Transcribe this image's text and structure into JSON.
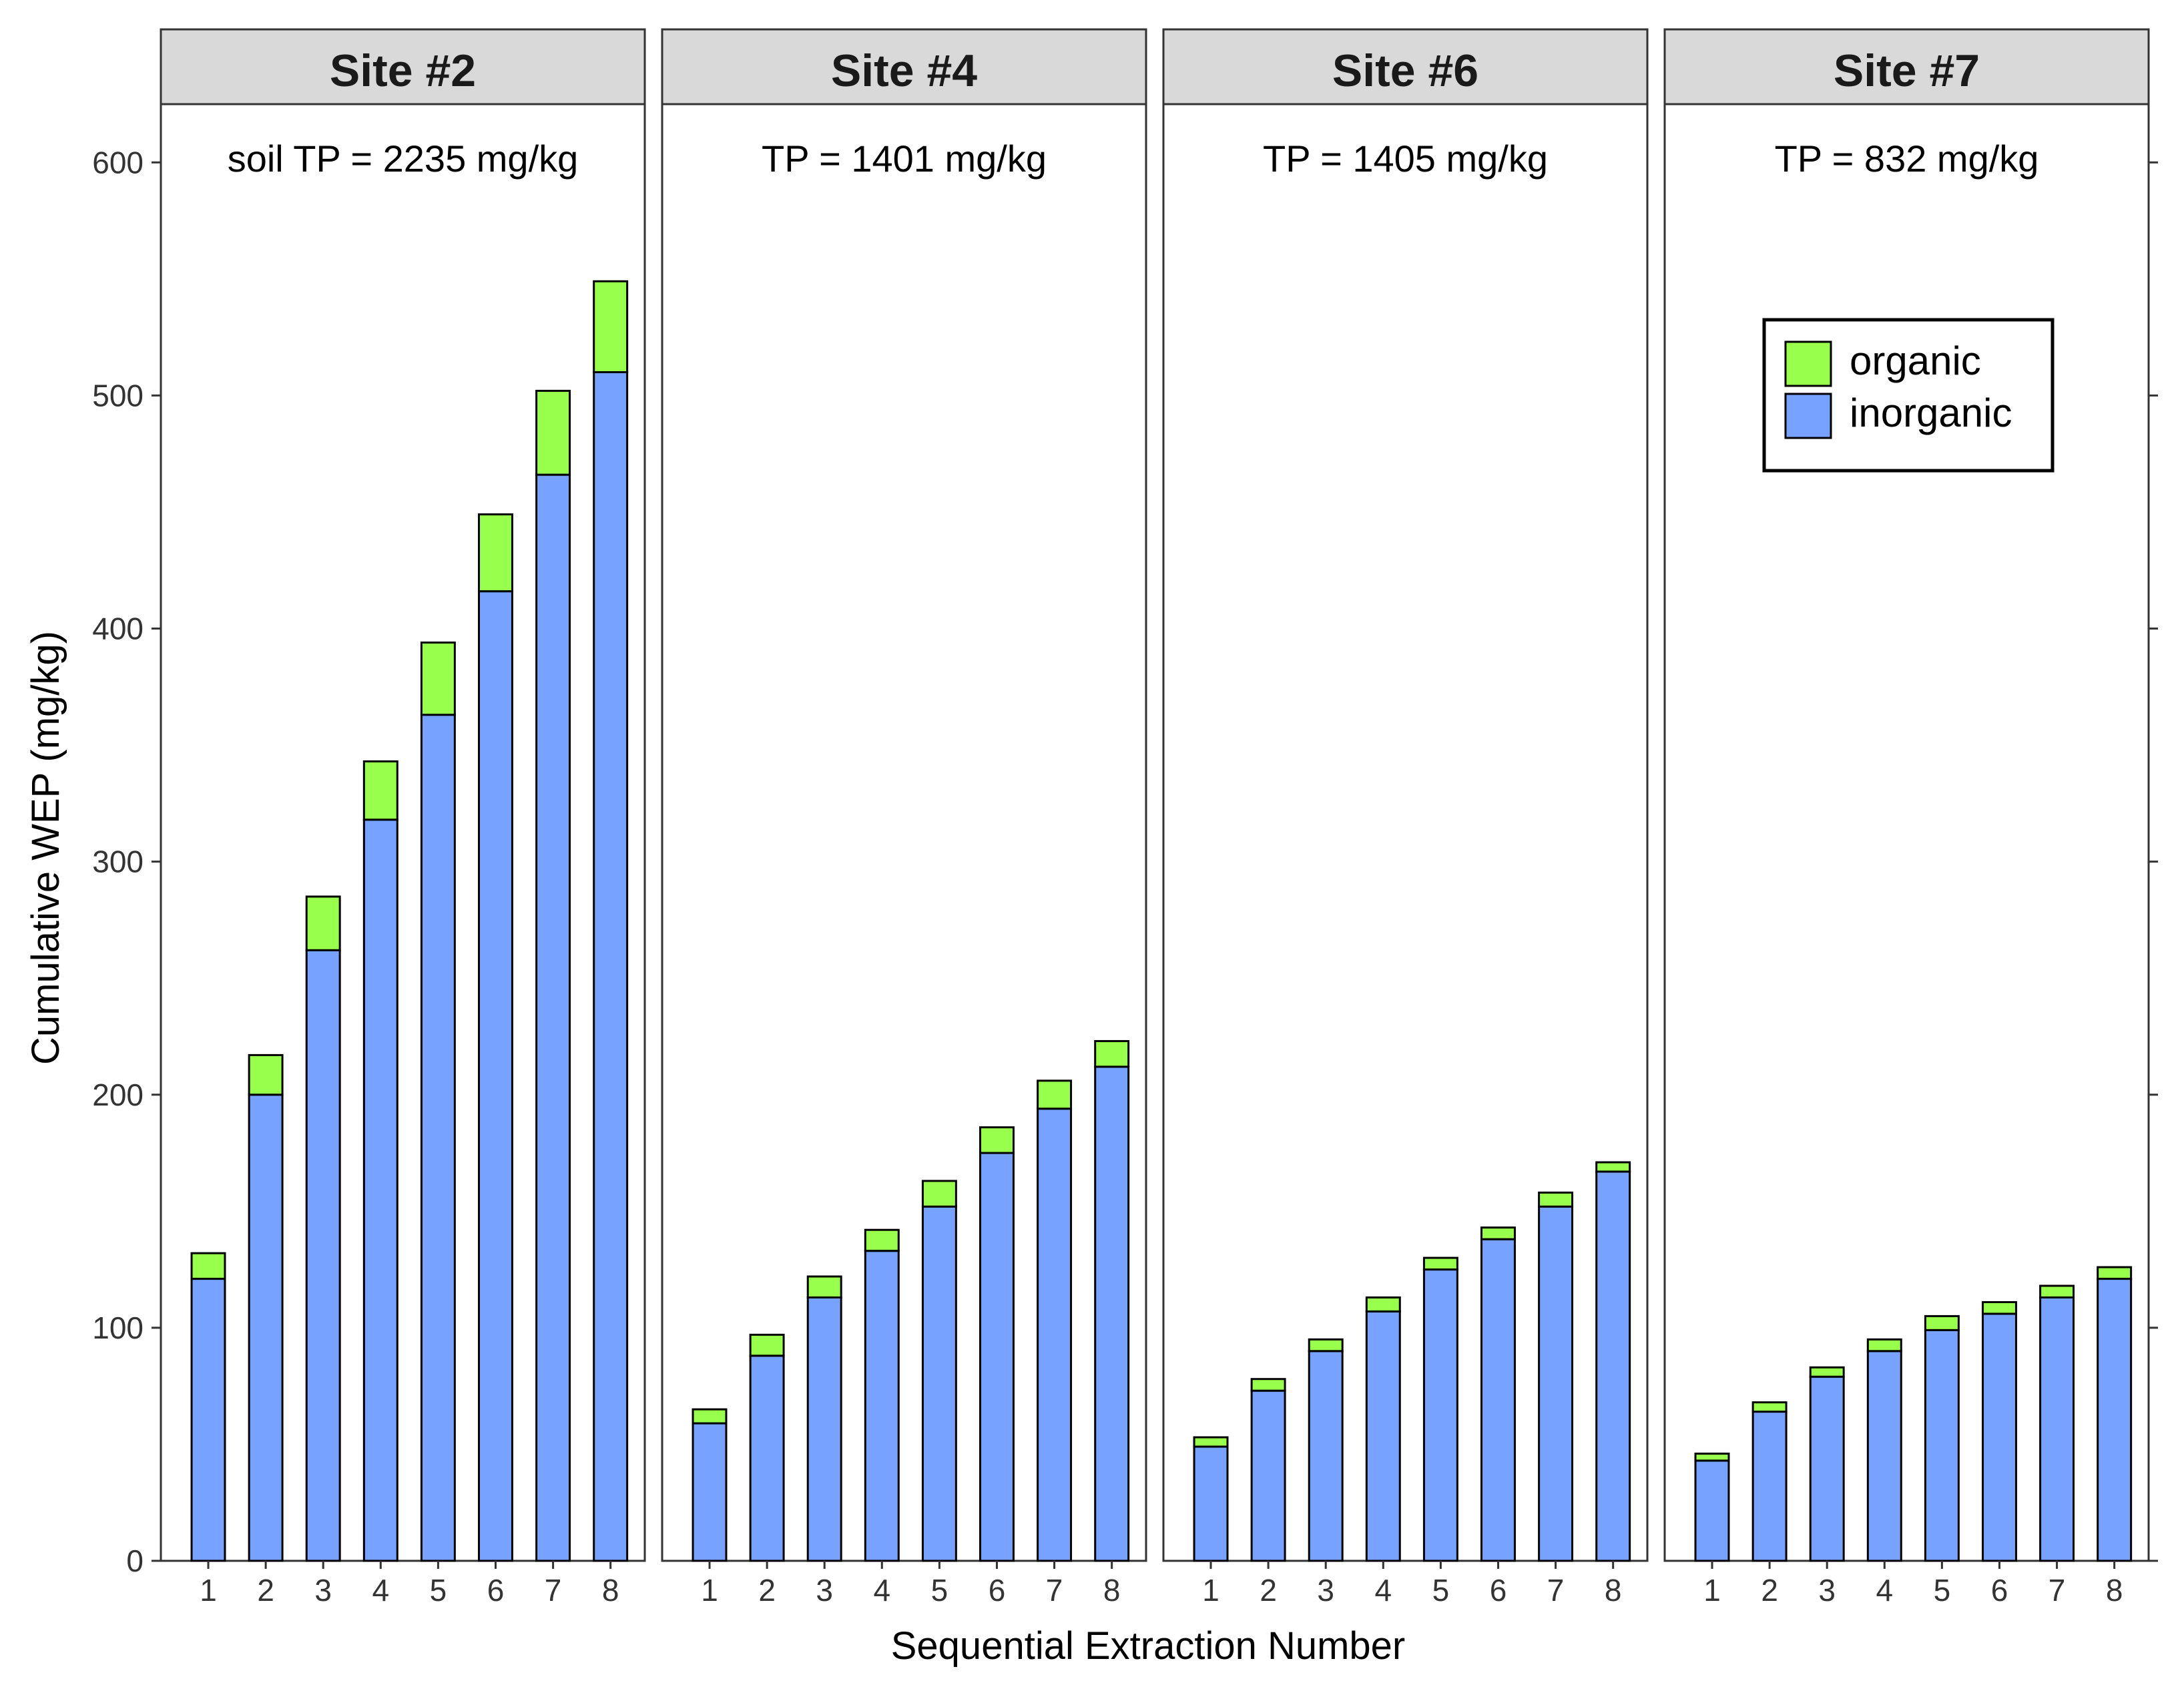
{
  "chart_data": {
    "type": "bar",
    "stacked": true,
    "xlabel": "Sequential Extraction Number",
    "ylabel": "Cumulative WEP (mg/kg)",
    "ylim": [
      0,
      625
    ],
    "yticks": [
      "0",
      "100",
      "200",
      "300",
      "400",
      "500",
      "600"
    ],
    "categories": [
      "1",
      "2",
      "3",
      "4",
      "5",
      "6",
      "7",
      "8"
    ],
    "colors": {
      "organic": "#99ff4d",
      "inorganic": "#77a2ff"
    },
    "legend": {
      "placement": "top-right (inside Site #7 panel)",
      "entries": [
        "organic",
        "inorganic"
      ]
    },
    "panels": [
      {
        "title": "Site #2",
        "note": "soil TP = 2235 mg/kg",
        "inorganic": [
          121,
          200,
          262,
          318,
          363,
          416,
          466,
          510
        ],
        "totals": [
          132,
          217,
          285,
          343,
          394,
          449,
          502,
          549
        ]
      },
      {
        "title": "Site #4",
        "note": "TP = 1401 mg/kg",
        "inorganic": [
          59,
          88,
          113,
          133,
          152,
          175,
          194,
          212
        ],
        "totals": [
          65,
          97,
          122,
          142,
          163,
          186,
          206,
          223
        ]
      },
      {
        "title": "Site #6",
        "note": "TP = 1405 mg/kg",
        "inorganic": [
          49,
          73,
          90,
          107,
          125,
          138,
          152,
          167
        ],
        "totals": [
          53,
          78,
          95,
          113,
          130,
          143,
          158,
          171
        ]
      },
      {
        "title": "Site #7",
        "note": "TP = 832 mg/kg",
        "inorganic": [
          43,
          64,
          79,
          90,
          99,
          106,
          113,
          121
        ],
        "totals": [
          46,
          68,
          83,
          95,
          105,
          111,
          118,
          126
        ]
      }
    ]
  }
}
